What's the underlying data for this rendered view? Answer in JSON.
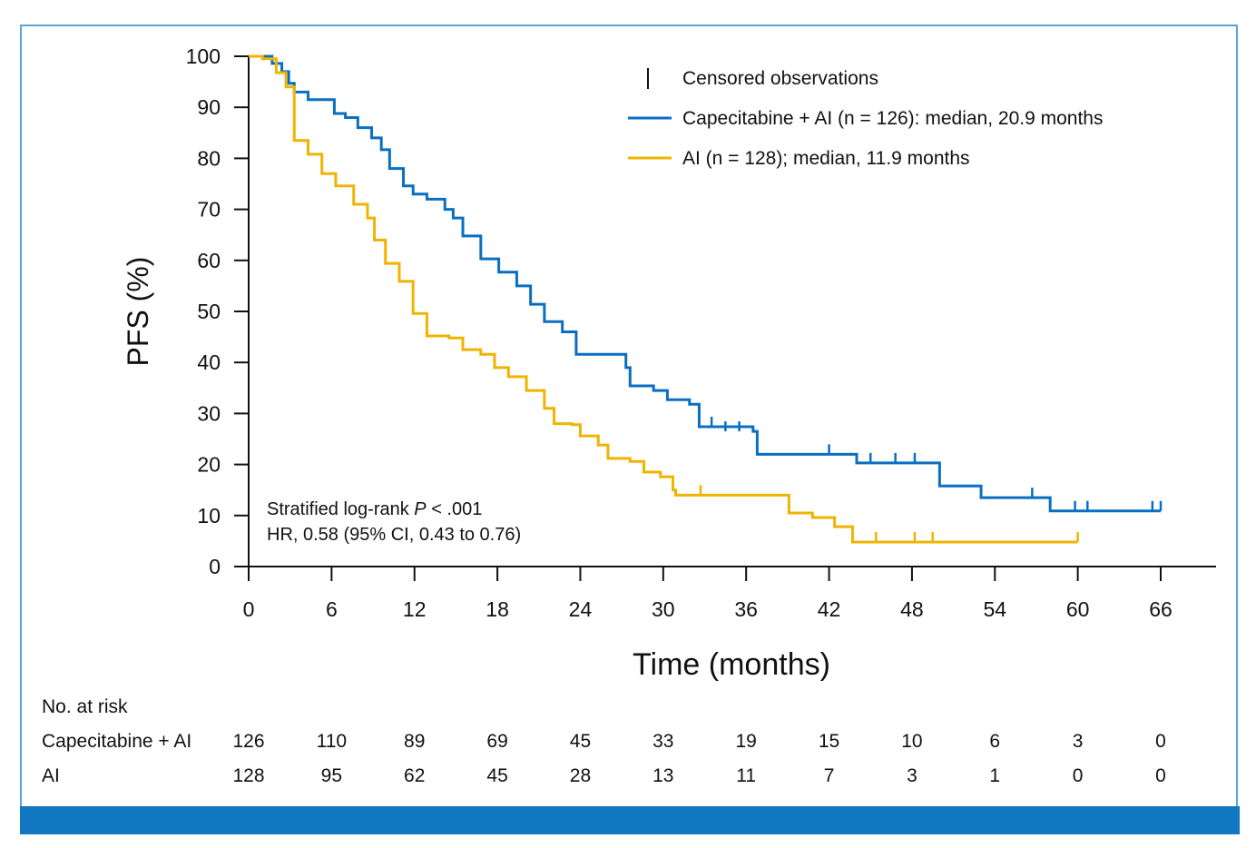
{
  "chart_data": {
    "type": "line",
    "subtype": "kaplan-meier",
    "xlabel": "Time (months)",
    "ylabel": "PFS (%)",
    "xlim": [
      0,
      66
    ],
    "ylim": [
      0,
      100
    ],
    "xticks": [
      0,
      6,
      12,
      18,
      24,
      30,
      36,
      42,
      48,
      54,
      60,
      66
    ],
    "yticks": [
      0,
      10,
      20,
      30,
      40,
      50,
      60,
      70,
      80,
      90,
      100
    ],
    "grid": false,
    "legend_position": "top-right",
    "legend": {
      "censored_label": "Censored observations",
      "entries": [
        "Capecitabine + AI (n = 126): median, 20.9 months",
        "AI (n = 128); median, 11.9 months"
      ]
    },
    "annotations": {
      "line1_prefix": "Stratified log-rank ",
      "line1_italic": "P",
      "line1_suffix": " < .001",
      "line2": "HR, 0.58 (95% CI, 0.43 to 0.76)"
    },
    "series": [
      {
        "name": "Capecitabine + AI",
        "color": "#0a6fc2",
        "points": [
          [
            0,
            100
          ],
          [
            1.7,
            98.6
          ],
          [
            2.4,
            97
          ],
          [
            2.9,
            94.7
          ],
          [
            3.3,
            93
          ],
          [
            4.3,
            91.5
          ],
          [
            5.6,
            91.5
          ],
          [
            6.2,
            88.8
          ],
          [
            7,
            88
          ],
          [
            7.9,
            86
          ],
          [
            8.9,
            84
          ],
          [
            9.6,
            81.7
          ],
          [
            10.2,
            78
          ],
          [
            11.2,
            74.6
          ],
          [
            11.9,
            73
          ],
          [
            12.9,
            72
          ],
          [
            14.2,
            70
          ],
          [
            14.8,
            68.3
          ],
          [
            15.5,
            64.8
          ],
          [
            16.8,
            60.3
          ],
          [
            18.1,
            57.7
          ],
          [
            19.4,
            55
          ],
          [
            20.4,
            51.4
          ],
          [
            21.4,
            48
          ],
          [
            22.7,
            46
          ],
          [
            23.7,
            41.6
          ],
          [
            25.7,
            41.6
          ],
          [
            27.3,
            39
          ],
          [
            27.6,
            35.4
          ],
          [
            29.3,
            34.5
          ],
          [
            30.3,
            32.7
          ],
          [
            31.9,
            31.8
          ],
          [
            32.6,
            27.4
          ],
          [
            36.5,
            26.5
          ],
          [
            36.8,
            22
          ],
          [
            43.7,
            22
          ],
          [
            44,
            20.3
          ],
          [
            49,
            20.3
          ],
          [
            50,
            15.8
          ],
          [
            52.9,
            15.8
          ],
          [
            53,
            13.5
          ],
          [
            57.8,
            13.5
          ],
          [
            58,
            10.9
          ],
          [
            66,
            10.9
          ]
        ],
        "censored": [
          [
            33.5,
            27.4
          ],
          [
            34.5,
            26.5
          ],
          [
            35.5,
            26.5
          ],
          [
            42,
            22
          ],
          [
            45,
            20.3
          ],
          [
            46.8,
            20.3
          ],
          [
            48.2,
            20.3
          ],
          [
            56.7,
            13.5
          ],
          [
            59.8,
            10.9
          ],
          [
            60.7,
            10.9
          ],
          [
            65.4,
            10.9
          ],
          [
            66,
            10.9
          ]
        ]
      },
      {
        "name": "AI",
        "color": "#f0b400",
        "points": [
          [
            0,
            100
          ],
          [
            1,
            99.5
          ],
          [
            2,
            96.8
          ],
          [
            2.7,
            94
          ],
          [
            3,
            94
          ],
          [
            3.3,
            83.5
          ],
          [
            4.3,
            80.8
          ],
          [
            5.3,
            77
          ],
          [
            6.3,
            74.6
          ],
          [
            7.6,
            71
          ],
          [
            8.6,
            68.3
          ],
          [
            9.1,
            64
          ],
          [
            9.9,
            59.4
          ],
          [
            10.9,
            55.9
          ],
          [
            11.9,
            49.6
          ],
          [
            12.9,
            45.2
          ],
          [
            14.5,
            44.8
          ],
          [
            15.5,
            42.5
          ],
          [
            16.8,
            41.6
          ],
          [
            17.8,
            39
          ],
          [
            18.8,
            37.2
          ],
          [
            20.1,
            34.5
          ],
          [
            21.4,
            31
          ],
          [
            22.1,
            28
          ],
          [
            23.4,
            27.8
          ],
          [
            24,
            25.6
          ],
          [
            25.3,
            23.8
          ],
          [
            26,
            21.2
          ],
          [
            27.6,
            20.6
          ],
          [
            28.6,
            18.5
          ],
          [
            29.8,
            17.6
          ],
          [
            30.7,
            15
          ],
          [
            30.9,
            14
          ],
          [
            38.8,
            14
          ],
          [
            39.1,
            10.5
          ],
          [
            40.8,
            9.6
          ],
          [
            42.4,
            7.8
          ],
          [
            43.7,
            4.8
          ],
          [
            60,
            4.8
          ]
        ],
        "censored": [
          [
            32.7,
            14
          ],
          [
            45.4,
            4.8
          ],
          [
            48.2,
            4.8
          ],
          [
            49.5,
            4.8
          ],
          [
            60,
            4.8
          ]
        ]
      }
    ],
    "risk_table": {
      "title": "No. at risk",
      "rows": [
        {
          "label": "Capecitabine + AI",
          "values": [
            "126",
            "110",
            "89",
            "69",
            "45",
            "33",
            "19",
            "15",
            "10",
            "6",
            "3",
            "0"
          ]
        },
        {
          "label": "AI",
          "values": [
            "128",
            "95",
            "62",
            "45",
            "28",
            "13",
            "11",
            "7",
            "3",
            "1",
            "0",
            "0"
          ]
        }
      ]
    }
  }
}
